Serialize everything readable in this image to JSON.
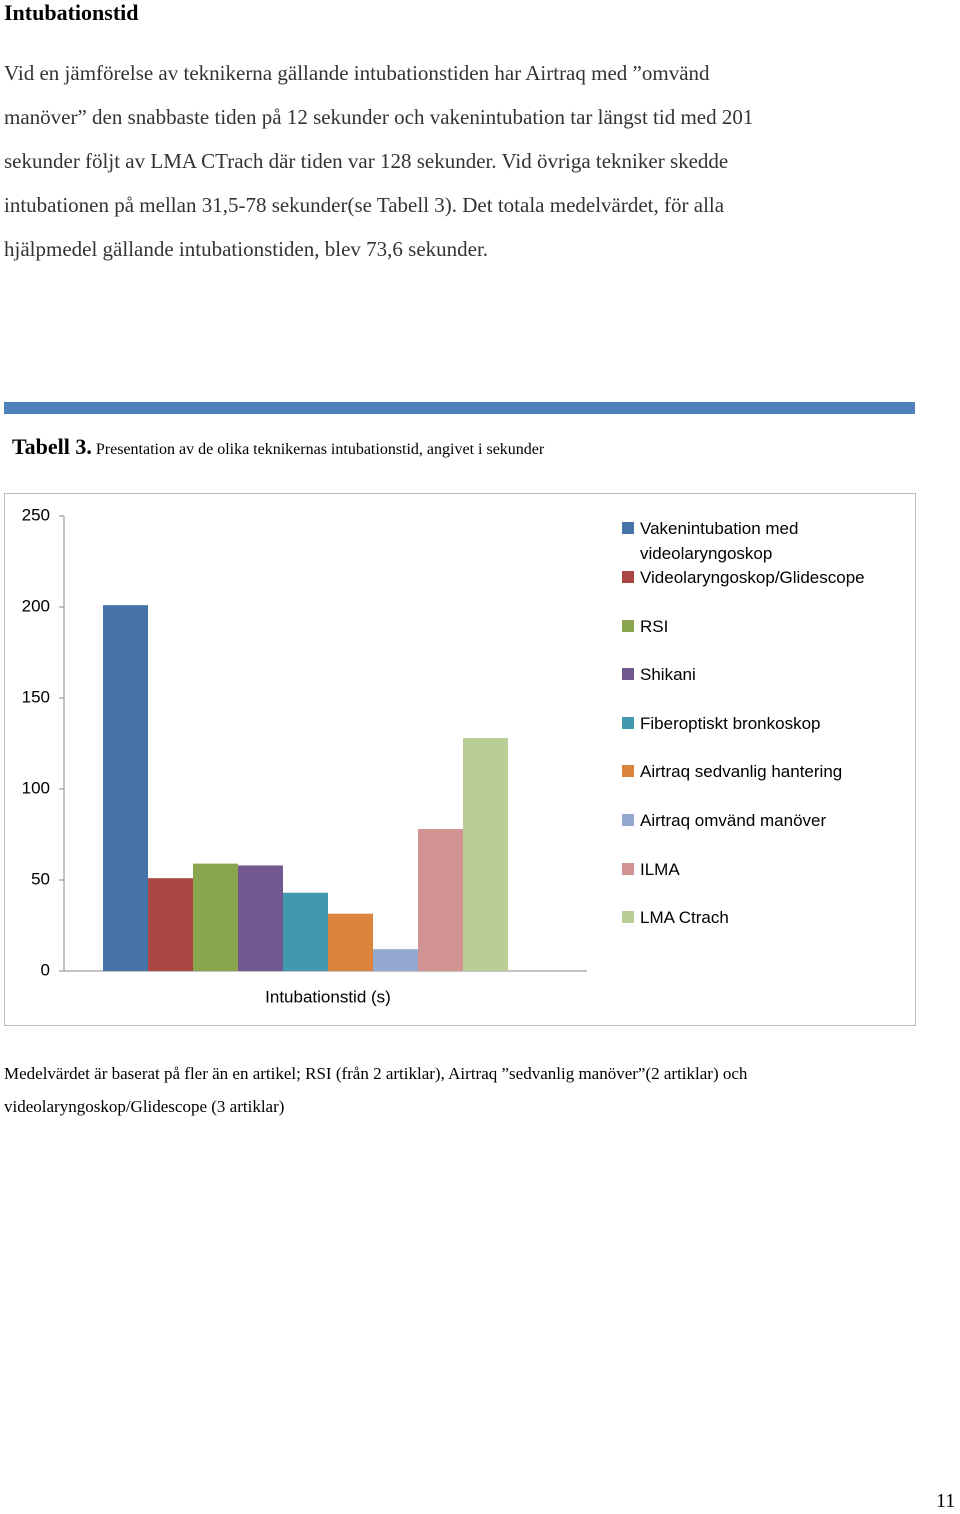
{
  "heading": "Intubationstid",
  "paragraph": {
    "lines": [
      "Vid en jämförelse av teknikerna gällande intubationstiden har Airtraq med ”omvänd",
      "manöver” den snabbaste tiden på 12 sekunder och vakenintubation tar längst tid med 201",
      "sekunder följt av LMA CTrach där tiden var 128 sekunder. Vid övriga tekniker skedde",
      "intubationen på mellan 31,5-78 sekunder(se Tabell 3). Det totala medelvärdet, för alla",
      "hjälpmedel gällande intubationstiden, blev 73,6 sekunder."
    ]
  },
  "caption": {
    "label": "Tabell 3.",
    "text": "Presentation av de olika teknikernas intubationstid, angivet i sekunder"
  },
  "chart_data": {
    "type": "bar",
    "categories": [
      "Intubationstid (s)"
    ],
    "series": [
      {
        "name": "Vakenintubation med videolaryngoskop",
        "color": "#4572a7",
        "values": [
          201
        ]
      },
      {
        "name": "Videolaryngoskop/Glidescope",
        "color": "#aa4643",
        "values": [
          51
        ]
      },
      {
        "name": "RSI",
        "color": "#89a54e",
        "values": [
          59
        ]
      },
      {
        "name": "Shikani",
        "color": "#71588f",
        "values": [
          58
        ]
      },
      {
        "name": "Fiberoptiskt bronkoskop",
        "color": "#4198af",
        "values": [
          43
        ]
      },
      {
        "name": "Airtraq sedvanlig hantering",
        "color": "#db843d",
        "values": [
          31.5
        ]
      },
      {
        "name": "Airtraq omvänd manöver",
        "color": "#93a9cf",
        "values": [
          12
        ]
      },
      {
        "name": "ILMA",
        "color": "#d19392",
        "values": [
          78
        ]
      },
      {
        "name": "LMA Ctrach",
        "color": "#b9cd96",
        "values": [
          128
        ]
      }
    ],
    "ylim": [
      0,
      250
    ],
    "yticks": [
      0,
      50,
      100,
      150,
      200,
      250
    ],
    "grid": false,
    "legend": "right"
  },
  "footnote": {
    "lines": [
      "Medelvärdet är baserat på fler än en artikel; RSI (från 2 artiklar), Airtraq ”sedvanlig manöver”(2 artiklar) och",
      "videolaryngoskop/Glidescope (3 artiklar)"
    ]
  },
  "page_number": "11"
}
